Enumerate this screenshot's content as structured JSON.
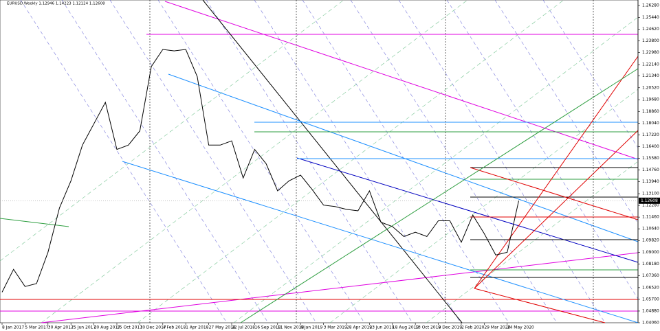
{
  "chart_data": {
    "type": "line",
    "title": "EURUSD,Weekly  1.12946 1.14223 1.12124 1.12608",
    "color": "#000000",
    "x": [
      "8 Jan 2017",
      "5 Feb 2017",
      "5 Mar 2017",
      "2 Apr 2017",
      "30 Apr 2017",
      "28 May 2017",
      "25 Jun 2017",
      "23 Jul 2017",
      "20 Aug 2017",
      "17 Sep 2017",
      "15 Oct 2017",
      "12 Nov 2017",
      "10 Dec 2017",
      "7 Jan 2018",
      "4 Feb 2018",
      "4 Mar 2018",
      "1 Apr 2018",
      "29 Apr 2018",
      "27 May 2018",
      "24 Jun 2018",
      "22 Jul 2018",
      "19 Aug 2018",
      "16 Sep 2018",
      "14 Oct 2018",
      "11 Nov 2018",
      "9 Dec 2018",
      "6 Jan 2019",
      "3 Feb 2019",
      "3 Mar 2019",
      "31 Mar 2019",
      "28 Apr 2019",
      "26 May 2019",
      "23 Jun 2019",
      "21 Jul 2019",
      "18 Aug 2019",
      "15 Sep 2019",
      "13 Oct 2019",
      "10 Nov 2019",
      "8 Dec 2019",
      "5 Jan 2020",
      "2 Feb 2020",
      "1 Mar 2020",
      "29 Mar 2020",
      "26 Apr 2020",
      "24 May 2020",
      "21 Jun 2020"
    ],
    "values": [
      1.062,
      1.078,
      1.066,
      1.068,
      1.09,
      1.121,
      1.14,
      1.165,
      1.18,
      1.195,
      1.162,
      1.165,
      1.175,
      1.22,
      1.232,
      1.231,
      1.232,
      1.213,
      1.165,
      1.165,
      1.168,
      1.142,
      1.162,
      1.152,
      1.133,
      1.14,
      1.144,
      1.134,
      1.123,
      1.122,
      1.12,
      1.119,
      1.133,
      1.111,
      1.108,
      1.101,
      1.104,
      1.101,
      1.112,
      1.112,
      1.097,
      1.116,
      1.103,
      1.088,
      1.09,
      1.12608
    ],
    "xlim": [
      "8 Jan 2017",
      "8 Apr 2021"
    ],
    "xticks": [
      "8 Jan 2017",
      "5 Mar 2017",
      "30 Apr 2017",
      "25 Jun 2017",
      "20 Aug 2017",
      "15 Oct 2017",
      "10 Dec 2017",
      "4 Feb 2018",
      "1 Apr 2018",
      "27 May 2018",
      "22 Jul 2018",
      "16 Sep 2018",
      "11 Nov 2018",
      "6 Jan 2019",
      "3 Mar 2019",
      "28 Apr 2019",
      "23 Jun 2019",
      "18 Aug 2019",
      "13 Oct 2019",
      "8 Dec 2019",
      "2 Feb 2020",
      "29 Mar 2020",
      "24 May 2020"
    ],
    "ylim": [
      1.0406,
      1.2628
    ],
    "yticks": [
      {
        "value": 1.2628,
        "label": "1.26280"
      },
      {
        "value": 1.2544,
        "label": "1.25440"
      },
      {
        "value": 1.2462,
        "label": "1.24620"
      },
      {
        "value": 1.238,
        "label": "1.23800"
      },
      {
        "value": 1.2298,
        "label": "1.22980"
      },
      {
        "value": 1.2214,
        "label": "1.22140"
      },
      {
        "value": 1.2134,
        "label": "1.21340"
      },
      {
        "value": 1.2052,
        "label": "1.20520"
      },
      {
        "value": 1.1968,
        "label": "1.19680"
      },
      {
        "value": 1.1886,
        "label": "1.18860"
      },
      {
        "value": 1.1804,
        "label": "1.18040"
      },
      {
        "value": 1.1722,
        "label": "1.17220"
      },
      {
        "value": 1.164,
        "label": "1.16400"
      },
      {
        "value": 1.1558,
        "label": "1.15580"
      },
      {
        "value": 1.1476,
        "label": "1.14760"
      },
      {
        "value": 1.1394,
        "label": "1.13940"
      },
      {
        "value": 1.131,
        "label": "1.13100"
      },
      {
        "value": 1.1228,
        "label": "1.12280"
      },
      {
        "value": 1.1146,
        "label": "1.11460"
      },
      {
        "value": 1.1064,
        "label": "1.10640"
      },
      {
        "value": 1.0982,
        "label": "1.09820"
      },
      {
        "value": 1.09,
        "label": "1.09000"
      },
      {
        "value": 1.0818,
        "label": "1.08180"
      },
      {
        "value": 1.0736,
        "label": "1.07360"
      },
      {
        "value": 1.0652,
        "label": "1.06520"
      },
      {
        "value": 1.057,
        "label": "1.05700"
      },
      {
        "value": 1.0488,
        "label": "1.04880"
      },
      {
        "value": 1.0406,
        "label": "1.04060"
      }
    ]
  }
}
